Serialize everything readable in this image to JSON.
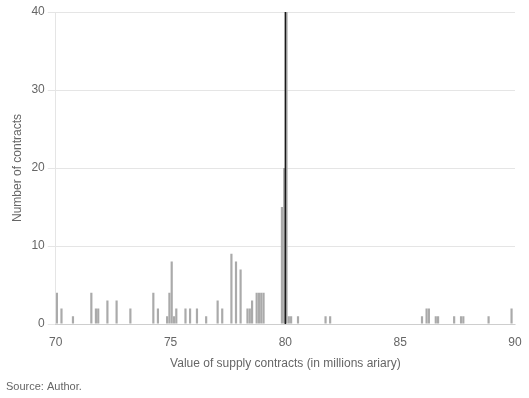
{
  "chart_data": {
    "type": "bar",
    "xlabel": "Value of supply contracts (in millions ariary)",
    "ylabel": "Number of contracts",
    "annotations": [
      "Source: Author."
    ],
    "x": [
      70.05,
      70.25,
      70.75,
      71.55,
      71.75,
      71.85,
      72.25,
      72.65,
      73.25,
      74.25,
      74.45,
      74.85,
      74.95,
      75.05,
      75.15,
      75.25,
      75.65,
      75.85,
      76.15,
      76.55,
      77.05,
      77.25,
      77.65,
      77.85,
      78.05,
      78.35,
      78.45,
      78.55,
      78.75,
      78.85,
      78.95,
      79.05,
      79.85,
      79.95,
      80.05,
      80.15,
      80.25,
      80.55,
      81.75,
      81.95,
      85.95,
      86.15,
      86.25,
      86.55,
      86.65,
      87.35,
      87.65,
      87.75,
      88.85,
      89.85
    ],
    "values": [
      4,
      2,
      1,
      4,
      2,
      2,
      3,
      3,
      2,
      4,
      2,
      1,
      4,
      8,
      1,
      2,
      2,
      2,
      2,
      1,
      3,
      2,
      9,
      8,
      7,
      2,
      2,
      3,
      4,
      4,
      4,
      4,
      15,
      20,
      40,
      1,
      1,
      1,
      1,
      1,
      1,
      2,
      2,
      1,
      1,
      1,
      1,
      1,
      1,
      2
    ],
    "color": "#aaaaaa",
    "vline": {
      "x": 80,
      "color": "#1a1a1a"
    },
    "xlim": [
      70,
      90
    ],
    "ylim": [
      0,
      40
    ],
    "xticks": [
      70,
      75,
      80,
      85,
      90
    ],
    "yticks": [
      0,
      10,
      20,
      30,
      40
    ],
    "grid": "y"
  }
}
